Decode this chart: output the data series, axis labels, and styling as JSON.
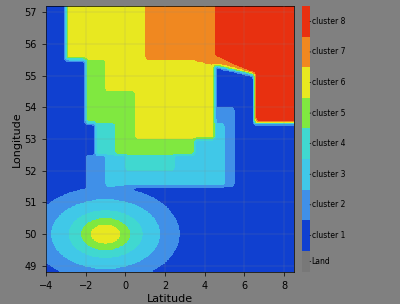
{
  "xlabel": "Latitude",
  "ylabel": "Longitude",
  "xlim": [
    -4,
    8.5
  ],
  "ylim": [
    48.8,
    57.2
  ],
  "cluster_colors": [
    "#1040d0",
    "#4090e8",
    "#40c8e8",
    "#40d8d0",
    "#80e840",
    "#e8e820",
    "#f08820",
    "#e83010"
  ],
  "land_color": "#787878",
  "sea_bg_color": "#787878",
  "background_color": "#808080",
  "cluster_labels": [
    "cluster 1",
    "cluster 2",
    "cluster 3",
    "cluster 4",
    "cluster 5",
    "cluster 6",
    "cluster 7",
    "cluster 8"
  ],
  "land_label": "Land",
  "figsize": [
    4.0,
    3.04
  ],
  "dpi": 100,
  "xticks": [
    -4,
    -2,
    0,
    2,
    4,
    6,
    8
  ],
  "yticks": [
    49,
    50,
    51,
    52,
    53,
    54,
    55,
    56,
    57
  ]
}
